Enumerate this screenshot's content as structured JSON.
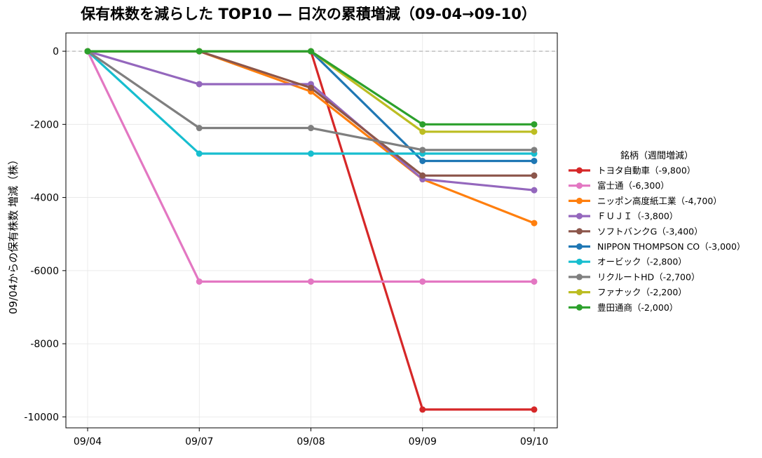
{
  "chart_data": {
    "type": "line",
    "title": "保有株数を減らした TOP10 — 日次の累積増減（09-04→09-10）",
    "xlabel": "",
    "ylabel": "09/04からの保有株数 増減（株）",
    "x": [
      "09/04",
      "09/07",
      "09/08",
      "09/09",
      "09/10"
    ],
    "ylim": [
      -10300,
      500
    ],
    "yticks": [
      0,
      -2000,
      -4000,
      -6000,
      -8000,
      -10000
    ],
    "ytick_labels": [
      "0",
      "-2000",
      "-4000",
      "-6000",
      "-8000",
      "-10000"
    ],
    "grid": true,
    "zero_line": "dashed",
    "legend": {
      "title": "銘柄（週間増減）",
      "placement": "right"
    },
    "series": [
      {
        "name": "トヨタ自動車（-9,800）",
        "color": "#d62728",
        "values": [
          0,
          0,
          0,
          -9800,
          -9800
        ]
      },
      {
        "name": "富士通（-6,300）",
        "color": "#e377c2",
        "values": [
          0,
          -6300,
          -6300,
          -6300,
          -6300
        ]
      },
      {
        "name": "ニッポン高度紙工業（-4,700）",
        "color": "#ff7f0e",
        "values": [
          0,
          0,
          -1100,
          -3500,
          -4700
        ]
      },
      {
        "name": "ＦＵＪＩ（-3,800）",
        "color": "#9467bd",
        "values": [
          0,
          -900,
          -900,
          -3500,
          -3800
        ]
      },
      {
        "name": "ソフトバンクG（-3,400）",
        "color": "#8c564b",
        "values": [
          0,
          0,
          -1000,
          -3400,
          -3400
        ]
      },
      {
        "name": "NIPPON THOMPSON CO（-3,000）",
        "color": "#1f77b4",
        "values": [
          0,
          0,
          0,
          -3000,
          -3000
        ]
      },
      {
        "name": "オービック（-2,800）",
        "color": "#17becf",
        "values": [
          0,
          -2800,
          -2800,
          -2800,
          -2800
        ]
      },
      {
        "name": "リクルートHD（-2,700）",
        "color": "#7f7f7f",
        "values": [
          0,
          -2100,
          -2100,
          -2700,
          -2700
        ]
      },
      {
        "name": "ファナック（-2,200）",
        "color": "#bcbd22",
        "values": [
          0,
          0,
          0,
          -2200,
          -2200
        ]
      },
      {
        "name": "豊田通商（-2,000）",
        "color": "#2ca02c",
        "values": [
          0,
          0,
          0,
          -2000,
          -2000
        ]
      }
    ]
  }
}
